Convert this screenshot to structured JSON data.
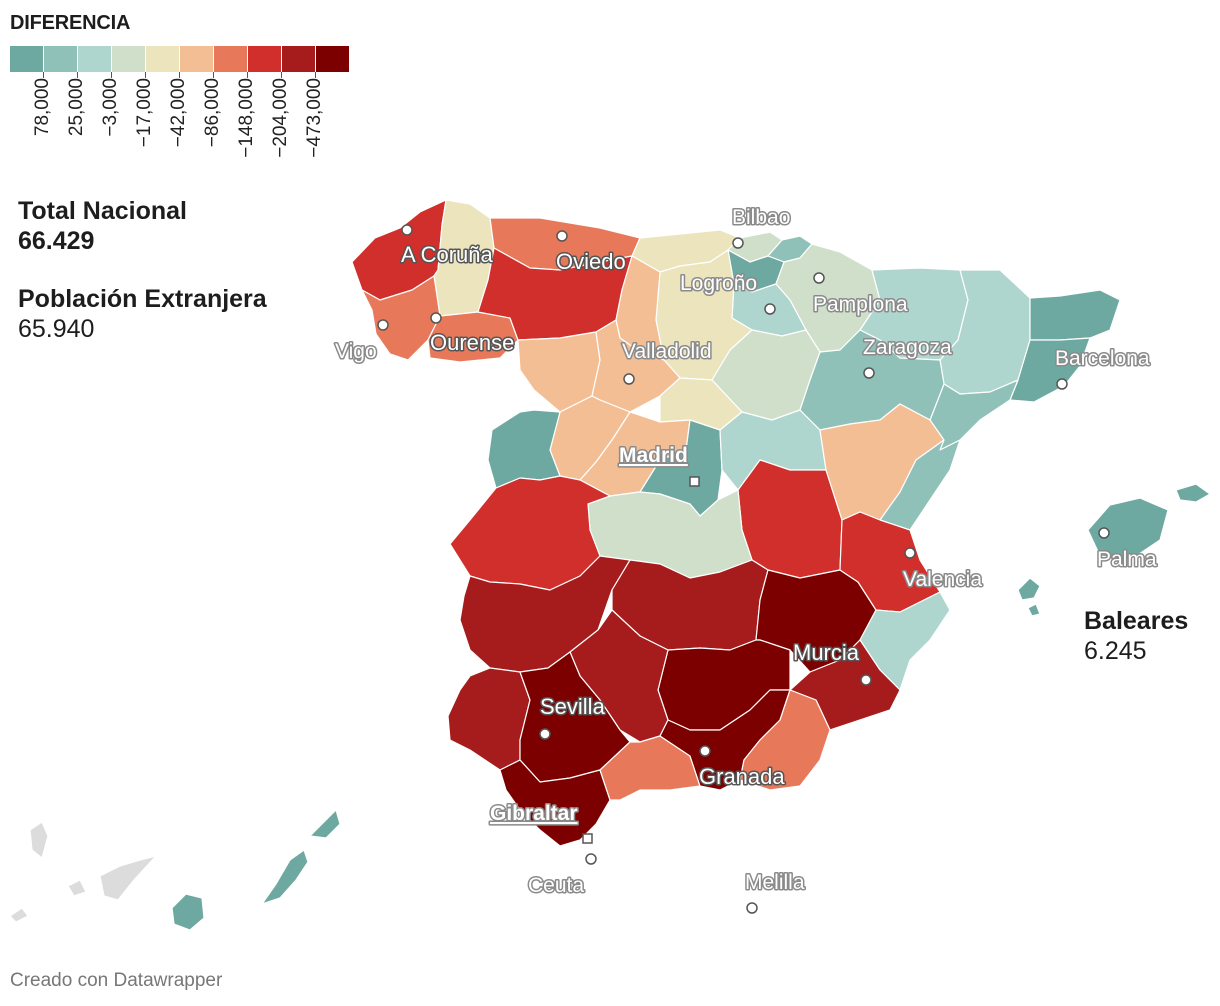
{
  "legend": {
    "title": "DIFERENCIA",
    "colors": [
      "#6ea9a1",
      "#8fc1b9",
      "#afd6ce",
      "#cfdfca",
      "#ebe4bd",
      "#f4be95",
      "#e7785a",
      "#d12f2b",
      "#a61c1c",
      "#7c0000"
    ],
    "ticks": [
      "78,000",
      "25,000",
      "−3,000",
      "−17,000",
      "−42,000",
      "−86,000",
      "−148,000",
      "−204,000",
      "−473,000"
    ]
  },
  "stats": {
    "total_label": "Total Nacional",
    "total_value": "66.429",
    "foreign_label": "Población Extranjera",
    "foreign_value": "65.940",
    "baleares_label": "Baleares",
    "baleares_value": "6.245"
  },
  "cities": {
    "a_coruna": "A Coruña",
    "oviedo": "Oviedo",
    "bilbao": "Bilbao",
    "logrono": "Logroño",
    "pamplona": "Pamplona",
    "vigo": "Vigo",
    "ourense": "Ourense",
    "valladolid": "Valladolid",
    "zaragoza": "Zaragoza",
    "barcelona": "Barcelona",
    "madrid": "Madrid",
    "valencia": "Valencia",
    "palma": "Palma",
    "murcia": "Murcia",
    "sevilla": "Sevilla",
    "granada": "Granada",
    "gibraltar": "Gibraltar",
    "ceuta": "Ceuta",
    "melilla": "Melilla"
  },
  "footer": "Creado con Datawrapper"
}
